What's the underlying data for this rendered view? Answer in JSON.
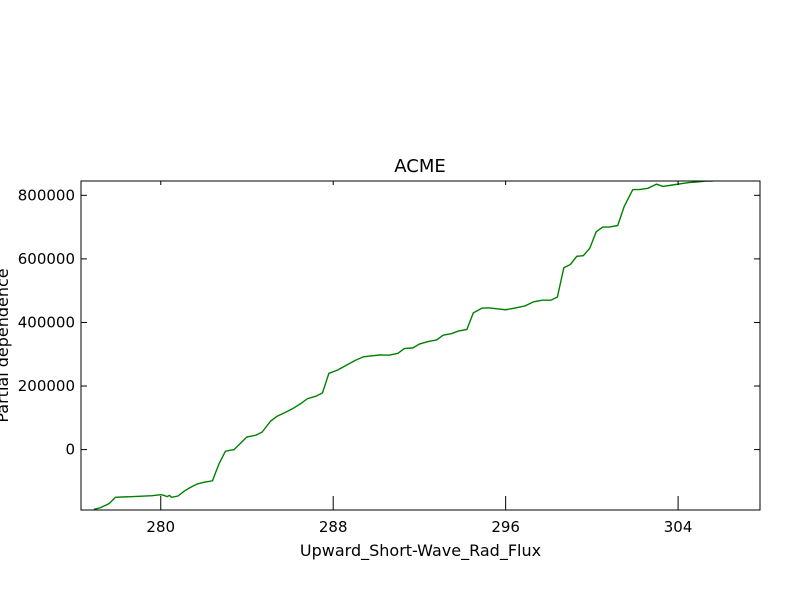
{
  "chart_data": {
    "type": "line",
    "title": "ACME",
    "xlabel": "Upward_Short-Wave_Rad_Flux",
    "ylabel": "Partial dependence",
    "xlim": [
      276.3,
      307.8
    ],
    "ylim": [
      -190000,
      845000
    ],
    "xticks": [
      280,
      288,
      296,
      304
    ],
    "xtick_labels": [
      "280",
      "288",
      "296",
      "304"
    ],
    "yticks": [
      0,
      200000,
      400000,
      600000,
      800000
    ],
    "ytick_labels": [
      "0",
      "200000",
      "400000",
      "600000",
      "800000"
    ],
    "grid": false,
    "line_color": "#008000",
    "x": [
      276.9,
      277.2,
      277.6,
      277.9,
      278.6,
      279.0,
      279.6,
      280.0,
      280.1,
      280.3,
      280.4,
      280.5,
      280.8,
      281.1,
      281.4,
      281.7,
      282.0,
      282.4,
      282.7,
      283.0,
      283.4,
      283.7,
      284.0,
      284.4,
      284.7,
      285.1,
      285.4,
      285.8,
      286.1,
      286.5,
      286.8,
      287.2,
      287.5,
      287.8,
      288.2,
      288.6,
      289.0,
      289.4,
      289.8,
      290.2,
      290.6,
      291.0,
      291.3,
      291.7,
      292.0,
      292.4,
      292.8,
      293.1,
      293.5,
      293.8,
      294.2,
      294.5,
      294.9,
      295.2,
      295.6,
      296.0,
      296.4,
      296.9,
      297.3,
      297.7,
      298.1,
      298.4,
      298.7,
      299.0,
      299.3,
      299.6,
      299.9,
      300.2,
      300.5,
      300.8,
      301.2,
      301.5,
      301.9,
      302.2,
      302.6,
      303.0,
      303.3,
      303.7,
      304.1,
      304.5,
      304.9,
      305.3,
      305.6
    ],
    "y": [
      -188000,
      -183000,
      -170000,
      -150000,
      -148000,
      -147000,
      -145000,
      -142000,
      -143000,
      -148000,
      -144000,
      -150000,
      -146000,
      -130000,
      -118000,
      -108000,
      -103000,
      -98000,
      -45000,
      -5000,
      0,
      20000,
      40000,
      45000,
      55000,
      90000,
      105000,
      118000,
      128000,
      145000,
      160000,
      168000,
      178000,
      240000,
      250000,
      265000,
      280000,
      292000,
      295000,
      298000,
      297000,
      303000,
      318000,
      320000,
      332000,
      340000,
      345000,
      360000,
      365000,
      373000,
      378000,
      430000,
      445000,
      446000,
      443000,
      440000,
      445000,
      452000,
      465000,
      470000,
      470000,
      480000,
      572000,
      582000,
      608000,
      610000,
      633000,
      685000,
      700000,
      700000,
      705000,
      765000,
      818000,
      818000,
      822000,
      835000,
      828000,
      832000,
      836000,
      840000,
      842000,
      845000,
      845000
    ]
  }
}
